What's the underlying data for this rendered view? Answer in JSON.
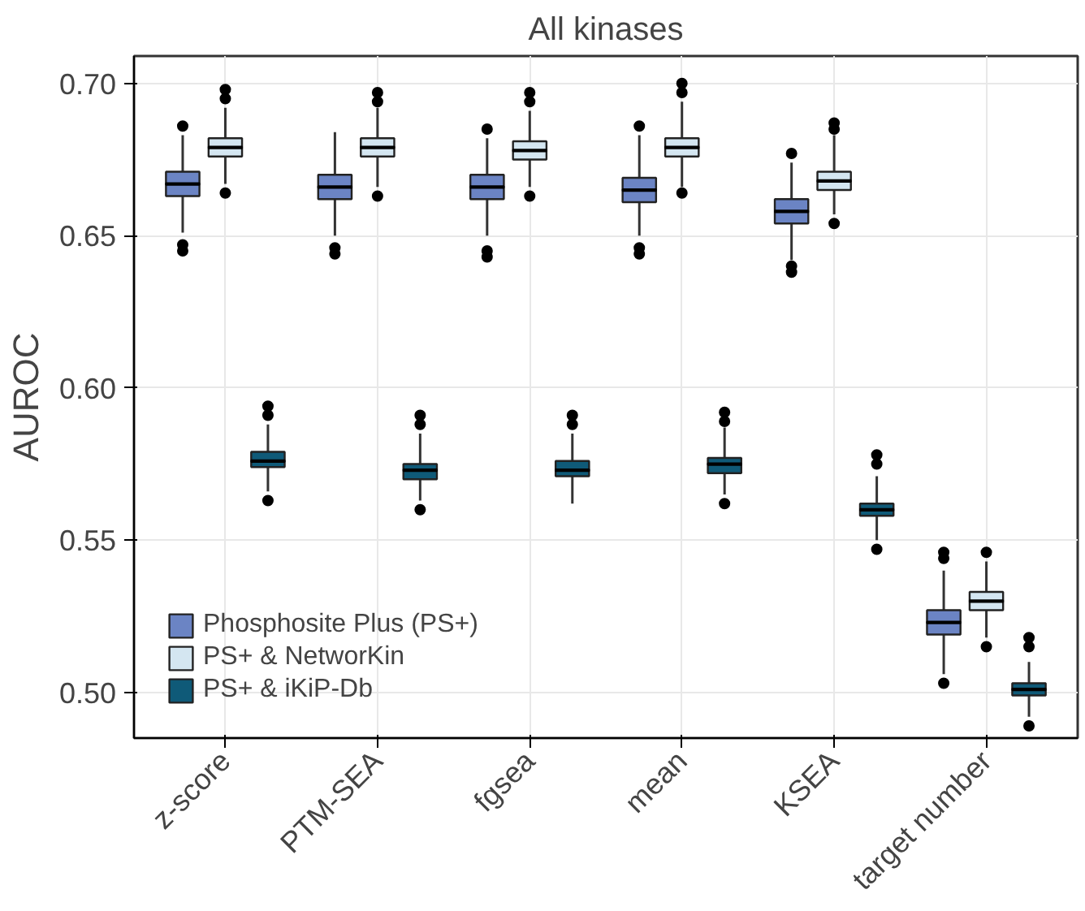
{
  "chart_data": {
    "type": "box",
    "title": "All kinases",
    "ylabel": "AUROC",
    "categories": [
      "z-score",
      "PTM-SEA",
      "fgsea",
      "mean",
      "KSEA",
      "target number"
    ],
    "ylim": [
      0.485,
      0.709
    ],
    "yticks": [
      {
        "value": 0.5,
        "label": "0.50"
      },
      {
        "value": 0.55,
        "label": "0.55"
      },
      {
        "value": 0.6,
        "label": "0.60"
      },
      {
        "value": 0.65,
        "label": "0.65"
      },
      {
        "value": 0.7,
        "label": "0.70"
      }
    ],
    "grid": true,
    "legend": "bottom left",
    "series": [
      {
        "name": "Phosphosite Plus (PS+)",
        "color": "#6b84c4",
        "boxes": [
          {
            "low": 0.651,
            "q1": 0.663,
            "median": 0.667,
            "q3": 0.671,
            "high": 0.683,
            "outliers": [
              0.686,
              0.647,
              0.645
            ]
          },
          {
            "low": 0.65,
            "q1": 0.662,
            "median": 0.666,
            "q3": 0.67,
            "high": 0.684,
            "outliers": [
              0.646,
              0.644
            ]
          },
          {
            "low": 0.65,
            "q1": 0.662,
            "median": 0.666,
            "q3": 0.67,
            "high": 0.682,
            "outliers": [
              0.685,
              0.645,
              0.643
            ]
          },
          {
            "low": 0.65,
            "q1": 0.661,
            "median": 0.665,
            "q3": 0.669,
            "high": 0.683,
            "outliers": [
              0.686,
              0.646,
              0.644
            ]
          },
          {
            "low": 0.642,
            "q1": 0.654,
            "median": 0.658,
            "q3": 0.662,
            "high": 0.674,
            "outliers": [
              0.677,
              0.64,
              0.638
            ]
          },
          {
            "low": 0.506,
            "q1": 0.519,
            "median": 0.523,
            "q3": 0.527,
            "high": 0.54,
            "outliers": [
              0.546,
              0.544,
              0.503
            ]
          }
        ]
      },
      {
        "name": "PS+ & NetworKin",
        "color": "#d4e6f1",
        "boxes": [
          {
            "low": 0.667,
            "q1": 0.676,
            "median": 0.679,
            "q3": 0.682,
            "high": 0.692,
            "outliers": [
              0.698,
              0.695,
              0.664
            ]
          },
          {
            "low": 0.666,
            "q1": 0.676,
            "median": 0.679,
            "q3": 0.682,
            "high": 0.692,
            "outliers": [
              0.697,
              0.694,
              0.663
            ]
          },
          {
            "low": 0.666,
            "q1": 0.675,
            "median": 0.678,
            "q3": 0.681,
            "high": 0.691,
            "outliers": [
              0.697,
              0.694,
              0.663
            ]
          },
          {
            "low": 0.666,
            "q1": 0.676,
            "median": 0.679,
            "q3": 0.682,
            "high": 0.694,
            "outliers": [
              0.7,
              0.697,
              0.664
            ]
          },
          {
            "low": 0.657,
            "q1": 0.665,
            "median": 0.668,
            "q3": 0.671,
            "high": 0.683,
            "outliers": [
              0.687,
              0.685,
              0.654
            ]
          },
          {
            "low": 0.518,
            "q1": 0.527,
            "median": 0.53,
            "q3": 0.533,
            "high": 0.543,
            "outliers": [
              0.546,
              0.515
            ]
          }
        ]
      },
      {
        "name": "PS+ & iKiP-Db",
        "color": "#0f5a78",
        "boxes": [
          {
            "low": 0.566,
            "q1": 0.574,
            "median": 0.576,
            "q3": 0.579,
            "high": 0.588,
            "outliers": [
              0.594,
              0.591,
              0.563
            ]
          },
          {
            "low": 0.563,
            "q1": 0.57,
            "median": 0.573,
            "q3": 0.575,
            "high": 0.585,
            "outliers": [
              0.591,
              0.588,
              0.56
            ]
          },
          {
            "low": 0.562,
            "q1": 0.571,
            "median": 0.573,
            "q3": 0.576,
            "high": 0.585,
            "outliers": [
              0.591,
              0.588
            ]
          },
          {
            "low": 0.565,
            "q1": 0.572,
            "median": 0.575,
            "q3": 0.577,
            "high": 0.587,
            "outliers": [
              0.592,
              0.589,
              0.562
            ]
          },
          {
            "low": 0.55,
            "q1": 0.558,
            "median": 0.56,
            "q3": 0.562,
            "high": 0.571,
            "outliers": [
              0.578,
              0.575,
              0.547
            ]
          },
          {
            "low": 0.492,
            "q1": 0.499,
            "median": 0.501,
            "q3": 0.503,
            "high": 0.51,
            "outliers": [
              0.518,
              0.515,
              0.489
            ]
          }
        ]
      }
    ]
  }
}
